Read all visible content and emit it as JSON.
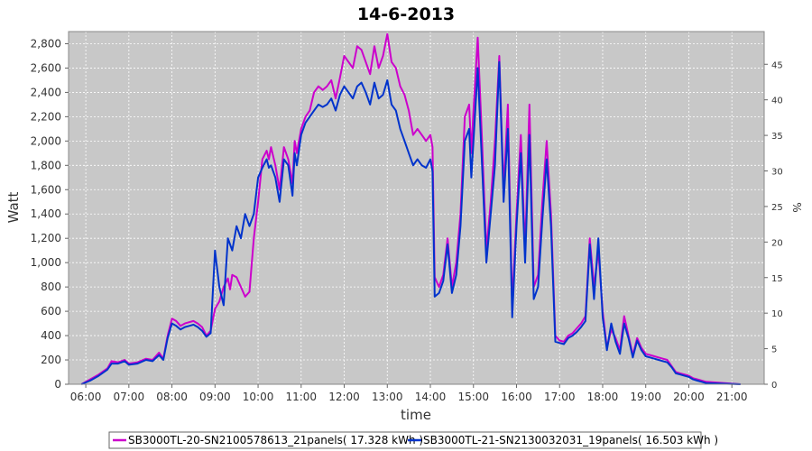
{
  "chart_data": {
    "type": "line",
    "title": "14-6-2013",
    "xlabel": "time",
    "ylabel": "Watt",
    "y2label": "%",
    "grid": true,
    "legend_position": "bottom",
    "plot_background": "#c8c8c8",
    "xlim": [
      5.6,
      21.75
    ],
    "ylim": [
      0,
      2900
    ],
    "y2lim": [
      0,
      49.6
    ],
    "x_ticks": [
      "06:00",
      "07:00",
      "08:00",
      "09:00",
      "10:00",
      "11:00",
      "12:00",
      "13:00",
      "14:00",
      "15:00",
      "16:00",
      "17:00",
      "18:00",
      "19:00",
      "20:00",
      "21:00"
    ],
    "x_tick_values": [
      6,
      7,
      8,
      9,
      10,
      11,
      12,
      13,
      14,
      15,
      16,
      17,
      18,
      19,
      20,
      21
    ],
    "y_ticks": [
      "0",
      "200",
      "400",
      "600",
      "800",
      "1,000",
      "1,200",
      "1,400",
      "1,600",
      "1,800",
      "2,000",
      "2,200",
      "2,400",
      "2,600",
      "2,800"
    ],
    "y_tick_values": [
      0,
      200,
      400,
      600,
      800,
      1000,
      1200,
      1400,
      1600,
      1800,
      2000,
      2200,
      2400,
      2600,
      2800
    ],
    "y2_ticks": [
      "0",
      "5",
      "10",
      "15",
      "20",
      "25",
      "30",
      "35",
      "40",
      "45"
    ],
    "y2_tick_values": [
      0,
      5,
      10,
      15,
      20,
      25,
      30,
      35,
      40,
      45
    ],
    "series": [
      {
        "name": "SB3000TL-20-SN2100578613_21panels( 17.328 kWh )",
        "color": "#cc00cc",
        "points": [
          [
            5.9,
            0
          ],
          [
            6.1,
            40
          ],
          [
            6.3,
            80
          ],
          [
            6.5,
            130
          ],
          [
            6.6,
            190
          ],
          [
            6.75,
            180
          ],
          [
            6.9,
            200
          ],
          [
            7.0,
            170
          ],
          [
            7.2,
            180
          ],
          [
            7.4,
            210
          ],
          [
            7.55,
            200
          ],
          [
            7.7,
            260
          ],
          [
            7.8,
            210
          ],
          [
            7.9,
            400
          ],
          [
            8.0,
            540
          ],
          [
            8.1,
            520
          ],
          [
            8.2,
            480
          ],
          [
            8.3,
            500
          ],
          [
            8.4,
            510
          ],
          [
            8.5,
            520
          ],
          [
            8.6,
            500
          ],
          [
            8.7,
            470
          ],
          [
            8.8,
            400
          ],
          [
            8.9,
            440
          ],
          [
            9.0,
            620
          ],
          [
            9.1,
            680
          ],
          [
            9.2,
            800
          ],
          [
            9.3,
            870
          ],
          [
            9.35,
            780
          ],
          [
            9.4,
            900
          ],
          [
            9.5,
            880
          ],
          [
            9.6,
            800
          ],
          [
            9.7,
            720
          ],
          [
            9.8,
            760
          ],
          [
            9.9,
            1200
          ],
          [
            10.0,
            1500
          ],
          [
            10.1,
            1850
          ],
          [
            10.2,
            1920
          ],
          [
            10.25,
            1850
          ],
          [
            10.3,
            1950
          ],
          [
            10.4,
            1800
          ],
          [
            10.5,
            1600
          ],
          [
            10.6,
            1950
          ],
          [
            10.7,
            1850
          ],
          [
            10.8,
            1650
          ],
          [
            10.85,
            2000
          ],
          [
            10.9,
            1900
          ],
          [
            11.0,
            2100
          ],
          [
            11.1,
            2200
          ],
          [
            11.2,
            2250
          ],
          [
            11.3,
            2400
          ],
          [
            11.4,
            2450
          ],
          [
            11.5,
            2420
          ],
          [
            11.6,
            2450
          ],
          [
            11.7,
            2500
          ],
          [
            11.8,
            2350
          ],
          [
            11.9,
            2520
          ],
          [
            12.0,
            2700
          ],
          [
            12.1,
            2650
          ],
          [
            12.2,
            2600
          ],
          [
            12.3,
            2780
          ],
          [
            12.4,
            2750
          ],
          [
            12.5,
            2650
          ],
          [
            12.6,
            2550
          ],
          [
            12.7,
            2780
          ],
          [
            12.8,
            2600
          ],
          [
            12.9,
            2700
          ],
          [
            13.0,
            2880
          ],
          [
            13.1,
            2650
          ],
          [
            13.2,
            2600
          ],
          [
            13.3,
            2450
          ],
          [
            13.4,
            2380
          ],
          [
            13.5,
            2250
          ],
          [
            13.6,
            2050
          ],
          [
            13.7,
            2100
          ],
          [
            13.8,
            2050
          ],
          [
            13.9,
            2000
          ],
          [
            14.0,
            2050
          ],
          [
            14.05,
            1950
          ],
          [
            14.1,
            880
          ],
          [
            14.2,
            800
          ],
          [
            14.3,
            900
          ],
          [
            14.4,
            1200
          ],
          [
            14.5,
            800
          ],
          [
            14.6,
            1000
          ],
          [
            14.7,
            1400
          ],
          [
            14.8,
            2200
          ],
          [
            14.9,
            2300
          ],
          [
            14.95,
            1900
          ],
          [
            15.0,
            2250
          ],
          [
            15.1,
            2850
          ],
          [
            15.2,
            2000
          ],
          [
            15.3,
            1100
          ],
          [
            15.4,
            1500
          ],
          [
            15.5,
            2000
          ],
          [
            15.6,
            2700
          ],
          [
            15.7,
            1600
          ],
          [
            15.8,
            2300
          ],
          [
            15.9,
            650
          ],
          [
            16.0,
            1400
          ],
          [
            16.1,
            2050
          ],
          [
            16.2,
            1100
          ],
          [
            16.3,
            2300
          ],
          [
            16.4,
            800
          ],
          [
            16.5,
            900
          ],
          [
            16.6,
            1500
          ],
          [
            16.7,
            2000
          ],
          [
            16.8,
            1400
          ],
          [
            16.9,
            400
          ],
          [
            17.0,
            360
          ],
          [
            17.1,
            350
          ],
          [
            17.2,
            400
          ],
          [
            17.3,
            420
          ],
          [
            17.4,
            460
          ],
          [
            17.5,
            500
          ],
          [
            17.6,
            560
          ],
          [
            17.7,
            1200
          ],
          [
            17.8,
            800
          ],
          [
            17.9,
            1100
          ],
          [
            18.0,
            600
          ],
          [
            18.1,
            300
          ],
          [
            18.2,
            450
          ],
          [
            18.3,
            380
          ],
          [
            18.4,
            280
          ],
          [
            18.5,
            560
          ],
          [
            18.6,
            400
          ],
          [
            18.7,
            240
          ],
          [
            18.8,
            380
          ],
          [
            18.9,
            300
          ],
          [
            19.0,
            250
          ],
          [
            19.1,
            240
          ],
          [
            19.2,
            230
          ],
          [
            19.3,
            220
          ],
          [
            19.4,
            210
          ],
          [
            19.5,
            200
          ],
          [
            19.6,
            150
          ],
          [
            19.7,
            100
          ],
          [
            19.8,
            90
          ],
          [
            19.9,
            80
          ],
          [
            20.0,
            70
          ],
          [
            20.1,
            50
          ],
          [
            20.2,
            40
          ],
          [
            20.3,
            30
          ],
          [
            20.4,
            20
          ],
          [
            21.2,
            0
          ]
        ]
      },
      {
        "name": "SB3000TL-21-SN2130032031_19panels( 16.503 kWh )",
        "color": "#0033cc",
        "points": [
          [
            5.9,
            0
          ],
          [
            6.1,
            30
          ],
          [
            6.3,
            70
          ],
          [
            6.5,
            120
          ],
          [
            6.6,
            170
          ],
          [
            6.75,
            170
          ],
          [
            6.9,
            190
          ],
          [
            7.0,
            160
          ],
          [
            7.2,
            170
          ],
          [
            7.4,
            200
          ],
          [
            7.55,
            190
          ],
          [
            7.7,
            240
          ],
          [
            7.8,
            200
          ],
          [
            7.9,
            380
          ],
          [
            8.0,
            500
          ],
          [
            8.1,
            480
          ],
          [
            8.2,
            450
          ],
          [
            8.3,
            470
          ],
          [
            8.4,
            480
          ],
          [
            8.5,
            490
          ],
          [
            8.6,
            470
          ],
          [
            8.7,
            440
          ],
          [
            8.8,
            390
          ],
          [
            8.9,
            420
          ],
          [
            9.0,
            1100
          ],
          [
            9.1,
            800
          ],
          [
            9.2,
            650
          ],
          [
            9.3,
            1200
          ],
          [
            9.4,
            1100
          ],
          [
            9.5,
            1300
          ],
          [
            9.6,
            1200
          ],
          [
            9.7,
            1400
          ],
          [
            9.8,
            1300
          ],
          [
            9.9,
            1400
          ],
          [
            10.0,
            1700
          ],
          [
            10.1,
            1780
          ],
          [
            10.2,
            1850
          ],
          [
            10.25,
            1780
          ],
          [
            10.3,
            1800
          ],
          [
            10.4,
            1700
          ],
          [
            10.5,
            1500
          ],
          [
            10.6,
            1850
          ],
          [
            10.7,
            1800
          ],
          [
            10.8,
            1550
          ],
          [
            10.85,
            1900
          ],
          [
            10.9,
            1800
          ],
          [
            11.0,
            2050
          ],
          [
            11.1,
            2150
          ],
          [
            11.2,
            2200
          ],
          [
            11.3,
            2250
          ],
          [
            11.4,
            2300
          ],
          [
            11.5,
            2280
          ],
          [
            11.6,
            2300
          ],
          [
            11.7,
            2350
          ],
          [
            11.8,
            2250
          ],
          [
            11.9,
            2380
          ],
          [
            12.0,
            2450
          ],
          [
            12.1,
            2400
          ],
          [
            12.2,
            2350
          ],
          [
            12.3,
            2450
          ],
          [
            12.4,
            2480
          ],
          [
            12.5,
            2400
          ],
          [
            12.6,
            2300
          ],
          [
            12.7,
            2480
          ],
          [
            12.8,
            2350
          ],
          [
            12.9,
            2380
          ],
          [
            13.0,
            2500
          ],
          [
            13.1,
            2300
          ],
          [
            13.2,
            2250
          ],
          [
            13.3,
            2100
          ],
          [
            13.4,
            2000
          ],
          [
            13.5,
            1900
          ],
          [
            13.6,
            1800
          ],
          [
            13.7,
            1850
          ],
          [
            13.8,
            1800
          ],
          [
            13.9,
            1780
          ],
          [
            14.0,
            1850
          ],
          [
            14.05,
            1750
          ],
          [
            14.1,
            720
          ],
          [
            14.2,
            750
          ],
          [
            14.3,
            850
          ],
          [
            14.4,
            1150
          ],
          [
            14.5,
            750
          ],
          [
            14.6,
            900
          ],
          [
            14.7,
            1300
          ],
          [
            14.8,
            2000
          ],
          [
            14.9,
            2100
          ],
          [
            14.95,
            1700
          ],
          [
            15.0,
            2000
          ],
          [
            15.1,
            2600
          ],
          [
            15.2,
            1800
          ],
          [
            15.3,
            1000
          ],
          [
            15.4,
            1400
          ],
          [
            15.5,
            1800
          ],
          [
            15.6,
            2650
          ],
          [
            15.7,
            1500
          ],
          [
            15.8,
            2100
          ],
          [
            15.9,
            550
          ],
          [
            16.0,
            1300
          ],
          [
            16.1,
            1900
          ],
          [
            16.2,
            1000
          ],
          [
            16.3,
            2050
          ],
          [
            16.4,
            700
          ],
          [
            16.5,
            800
          ],
          [
            16.6,
            1350
          ],
          [
            16.7,
            1850
          ],
          [
            16.8,
            1300
          ],
          [
            16.9,
            350
          ],
          [
            17.0,
            340
          ],
          [
            17.1,
            330
          ],
          [
            17.2,
            380
          ],
          [
            17.3,
            400
          ],
          [
            17.4,
            430
          ],
          [
            17.5,
            470
          ],
          [
            17.6,
            520
          ],
          [
            17.7,
            1150
          ],
          [
            17.8,
            700
          ],
          [
            17.9,
            1200
          ],
          [
            18.0,
            550
          ],
          [
            18.1,
            280
          ],
          [
            18.2,
            500
          ],
          [
            18.3,
            350
          ],
          [
            18.4,
            250
          ],
          [
            18.5,
            500
          ],
          [
            18.6,
            380
          ],
          [
            18.7,
            220
          ],
          [
            18.8,
            360
          ],
          [
            18.9,
            280
          ],
          [
            19.0,
            230
          ],
          [
            19.1,
            220
          ],
          [
            19.2,
            210
          ],
          [
            19.3,
            200
          ],
          [
            19.4,
            190
          ],
          [
            19.5,
            180
          ],
          [
            19.6,
            140
          ],
          [
            19.7,
            90
          ],
          [
            19.8,
            80
          ],
          [
            19.9,
            70
          ],
          [
            20.0,
            60
          ],
          [
            20.1,
            40
          ],
          [
            20.2,
            30
          ],
          [
            20.3,
            20
          ],
          [
            20.4,
            10
          ],
          [
            21.2,
            0
          ]
        ]
      }
    ]
  }
}
